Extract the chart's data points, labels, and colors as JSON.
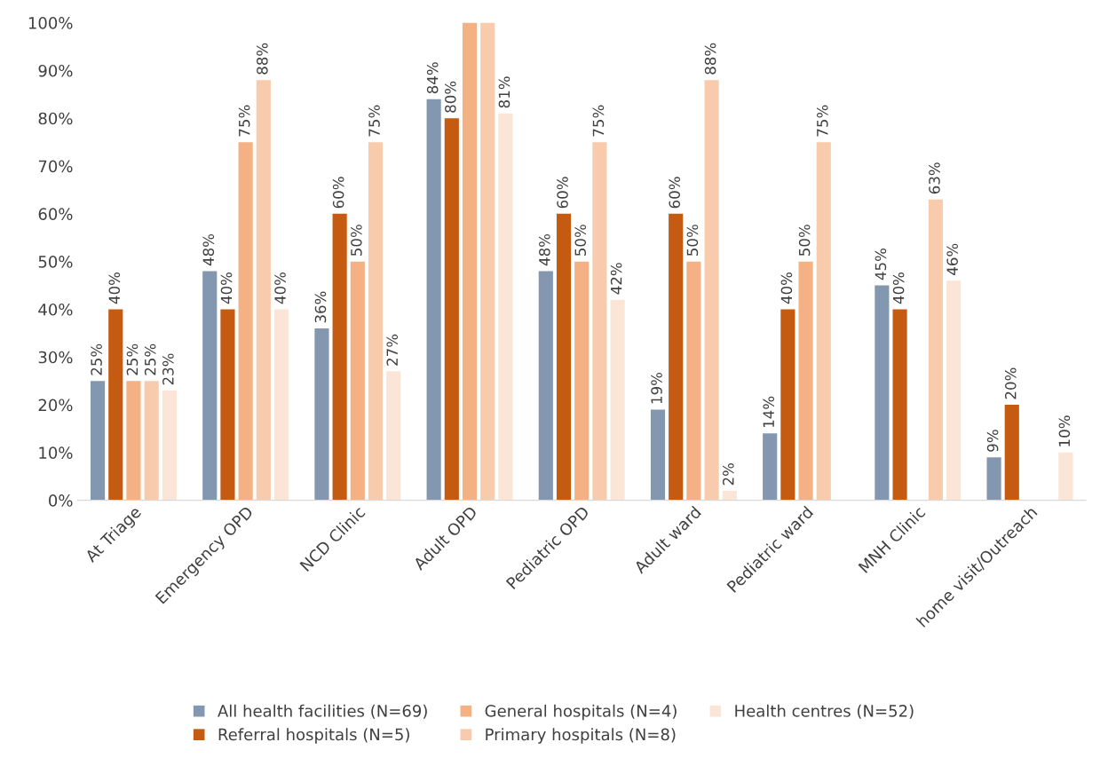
{
  "chart_data": {
    "type": "bar",
    "categories": [
      "At Triage",
      "Emergency OPD",
      "NCD Clinic",
      "Adult OPD",
      "Pediatric OPD",
      "Adult ward",
      "Pediatric ward",
      "MNH Clinic",
      "home visit/Outreach"
    ],
    "series": [
      {
        "name": "All health facilities (N=69)",
        "color": "#8497b0",
        "values": [
          25,
          48,
          36,
          84,
          48,
          19,
          14,
          45,
          9
        ],
        "value_labels": [
          "25%",
          "48%",
          "36%",
          "84%",
          "48%",
          "19%",
          "14%",
          "45%",
          "9%"
        ]
      },
      {
        "name": "Referral hospitals (N=5)",
        "color": "#c55a11",
        "values": [
          40,
          40,
          60,
          80,
          60,
          60,
          40,
          40,
          20
        ],
        "value_labels": [
          "40%",
          "40%",
          "60%",
          "80%",
          "60%",
          "60%",
          "40%",
          "40%",
          "20%"
        ]
      },
      {
        "name": "General hospitals (N=4)",
        "color": "#f4b183",
        "values": [
          25,
          75,
          50,
          100,
          50,
          50,
          50,
          null,
          null
        ],
        "value_labels": [
          "25%",
          "75%",
          "50%",
          null,
          "50%",
          "50%",
          "50%",
          null,
          null
        ]
      },
      {
        "name": "Primary hospitals (N=8)",
        "color": "#f8cbad",
        "values": [
          25,
          88,
          75,
          100,
          75,
          88,
          75,
          63,
          null
        ],
        "value_labels": [
          "25%",
          "88%",
          "75%",
          null,
          "75%",
          "88%",
          "75%",
          "63%",
          null
        ]
      },
      {
        "name": "Health centres (N=52)",
        "color": "#fbe5d6",
        "values": [
          23,
          40,
          27,
          81,
          42,
          2,
          null,
          46,
          10
        ],
        "value_labels": [
          "23%",
          "40%",
          "27%",
          "81%",
          "42%",
          "2%",
          null,
          "46%",
          "10%"
        ]
      }
    ],
    "ylim": [
      0,
      100
    ],
    "yticks": [
      {
        "value": 0,
        "label": "0%"
      },
      {
        "value": 10,
        "label": "10%"
      },
      {
        "value": 20,
        "label": "20%"
      },
      {
        "value": 30,
        "label": "30%"
      },
      {
        "value": 40,
        "label": "40%"
      },
      {
        "value": 50,
        "label": "50%"
      },
      {
        "value": 60,
        "label": "60%"
      },
      {
        "value": 70,
        "label": "70%"
      },
      {
        "value": 80,
        "label": "80%"
      },
      {
        "value": 90,
        "label": "90%"
      },
      {
        "value": 100,
        "label": "100%"
      }
    ],
    "grid": false,
    "legend": "bottom"
  }
}
